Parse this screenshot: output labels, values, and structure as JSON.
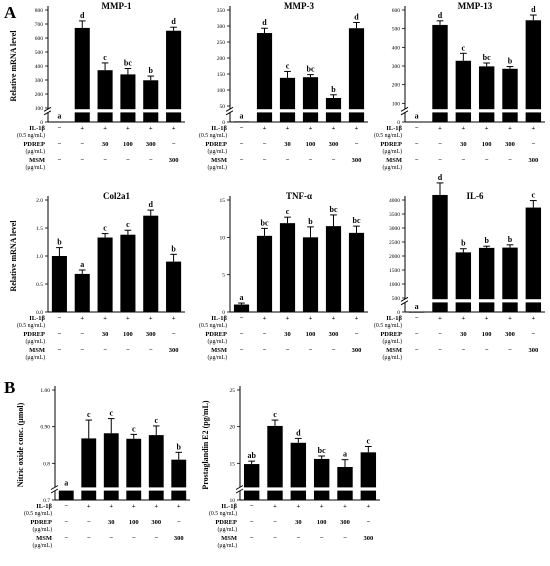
{
  "figure": {
    "panel_labels": [
      "A",
      "B"
    ],
    "ylabel_a": "Relative mRNA level"
  },
  "chart_data": [
    {
      "id": "mmp1",
      "type": "bar",
      "title": "MMP-1",
      "ylabel": "Relative mRNA level",
      "yticks": [
        0,
        100,
        200,
        300,
        400,
        500,
        600,
        700,
        800
      ],
      "ylim": [
        0,
        800
      ],
      "axis_break": true,
      "values": [
        2,
        672,
        370,
        340,
        298,
        652
      ],
      "errors": [
        0,
        50,
        52,
        42,
        30,
        25
      ],
      "letters": [
        "a",
        "d",
        "c",
        "bc",
        "b",
        "d"
      ],
      "treat": {
        "il1b": [
          "IL-1β",
          "(0.5 ng/mL)"
        ],
        "pdrep": [
          "PDREP",
          "(μg/mL)"
        ],
        "msm": [
          "MSM",
          "(μg/mL)"
        ]
      },
      "rows": {
        "il1b": [
          "−",
          "+",
          "+",
          "+",
          "+",
          "+"
        ],
        "pdrep": [
          "−",
          "−",
          "30",
          "100",
          "300",
          "−"
        ],
        "msm": [
          "−",
          "−",
          "−",
          "−",
          "−",
          "300"
        ]
      }
    },
    {
      "id": "mmp3",
      "type": "bar",
      "title": "MMP-3",
      "yticks": [
        0,
        50,
        100,
        150,
        200,
        250,
        300,
        350
      ],
      "ylim": [
        0,
        350
      ],
      "axis_break": true,
      "values": [
        2,
        278,
        138,
        140,
        75,
        293
      ],
      "errors": [
        0,
        15,
        20,
        8,
        10,
        18
      ],
      "letters": [
        "a",
        "d",
        "c",
        "bc",
        "b",
        "d"
      ],
      "treat": {
        "il1b": [
          "IL-1β",
          "(0.5 ng/mL)"
        ],
        "pdrep": [
          "PDREP",
          "(μg/mL)"
        ],
        "msm": [
          "MSM",
          "(μg/mL)"
        ]
      },
      "rows": {
        "il1b": [
          "−",
          "+",
          "+",
          "+",
          "+",
          "+"
        ],
        "pdrep": [
          "−",
          "−",
          "30",
          "100",
          "300",
          "−"
        ],
        "msm": [
          "−",
          "−",
          "−",
          "−",
          "−",
          "300"
        ]
      }
    },
    {
      "id": "mmp13",
      "type": "bar",
      "title": "MMP-13",
      "yticks": [
        0,
        100,
        200,
        300,
        400,
        500,
        600
      ],
      "ylim": [
        0,
        600
      ],
      "axis_break": true,
      "values": [
        2,
        520,
        328,
        298,
        285,
        545
      ],
      "errors": [
        0,
        22,
        40,
        18,
        12,
        28
      ],
      "letters": [
        "a",
        "d",
        "c",
        "bc",
        "b",
        "d"
      ],
      "treat": {
        "il1b": [
          "IL-1β",
          "(0.5 ng/mL)"
        ],
        "pdrep": [
          "PDREP",
          "(μg/mL)"
        ],
        "msm": [
          "MSM",
          "(μg/mL)"
        ]
      },
      "rows": {
        "il1b": [
          "−",
          "+",
          "+",
          "+",
          "+",
          "+"
        ],
        "pdrep": [
          "−",
          "−",
          "30",
          "100",
          "300",
          "−"
        ],
        "msm": [
          "−",
          "−",
          "−",
          "−",
          "−",
          "300"
        ]
      }
    },
    {
      "id": "col2a1",
      "type": "bar",
      "title": "Col2a1",
      "ylabel": "Relative mRNA level",
      "yticks": [
        0.0,
        0.5,
        1.0,
        1.5,
        2.0
      ],
      "ytick_labels": [
        "0.0",
        "0.5",
        "1.0",
        "1.5",
        "2.0"
      ],
      "ylim": [
        0,
        2
      ],
      "axis_break": false,
      "values": [
        1.0,
        0.68,
        1.33,
        1.38,
        1.72,
        0.9
      ],
      "errors": [
        0.15,
        0.07,
        0.07,
        0.08,
        0.1,
        0.13
      ],
      "letters": [
        "b",
        "a",
        "c",
        "c",
        "d",
        "b"
      ],
      "treat": {
        "il1b": [
          "IL-1β",
          "(0.5 ng/mL)"
        ],
        "pdrep": [
          "PDREP",
          "(μg/mL)"
        ],
        "msm": [
          "MSM",
          "(μg/mL)"
        ]
      },
      "rows": {
        "il1b": [
          "−",
          "+",
          "+",
          "+",
          "+",
          "+"
        ],
        "pdrep": [
          "−",
          "−",
          "30",
          "100",
          "300",
          "−"
        ],
        "msm": [
          "−",
          "−",
          "−",
          "−",
          "−",
          "300"
        ]
      }
    },
    {
      "id": "tnfa",
      "type": "bar",
      "title": "TNF-α",
      "yticks": [
        0,
        5,
        10,
        15
      ],
      "ylim": [
        0,
        15
      ],
      "axis_break": false,
      "values": [
        1.0,
        10.2,
        11.9,
        10.0,
        11.5,
        10.6
      ],
      "errors": [
        0.2,
        1.0,
        0.8,
        1.4,
        1.5,
        0.9
      ],
      "letters": [
        "a",
        "bc",
        "c",
        "b",
        "bc",
        "bc"
      ],
      "treat": {
        "il1b": [
          "IL-1β",
          "(0.5 ng/mL)"
        ],
        "pdrep": [
          "PDREP",
          "(μg/mL)"
        ],
        "msm": [
          "MSM",
          "(μg/mL)"
        ]
      },
      "rows": {
        "il1b": [
          "−",
          "+",
          "+",
          "+",
          "+",
          "+"
        ],
        "pdrep": [
          "−",
          "−",
          "30",
          "100",
          "300",
          "−"
        ],
        "msm": [
          "−",
          "−",
          "−",
          "−",
          "−",
          "300"
        ]
      }
    },
    {
      "id": "il6",
      "type": "bar",
      "title": "IL-6",
      "yticks": [
        0,
        500,
        1000,
        1500,
        2000,
        2500,
        3000,
        3500,
        4000
      ],
      "ylim": [
        0,
        4000
      ],
      "axis_break": true,
      "values": [
        5,
        4180,
        2130,
        2290,
        2300,
        3730
      ],
      "errors": [
        0,
        430,
        130,
        60,
        100,
        250
      ],
      "letters": [
        "a",
        "d",
        "b",
        "b",
        "b",
        "c"
      ],
      "treat": {
        "il1b": [
          "IL-1β",
          "(0.5 ng/mL)"
        ],
        "pdrep": [
          "PDREP",
          "(μg/mL)"
        ],
        "msm": [
          "MSM",
          "(μg/mL)"
        ]
      },
      "rows": {
        "il1b": [
          "−",
          "+",
          "+",
          "+",
          "+",
          "+"
        ],
        "pdrep": [
          "−",
          "−",
          "30",
          "100",
          "300",
          "−"
        ],
        "msm": [
          "−",
          "−",
          "−",
          "−",
          "−",
          "300"
        ]
      }
    },
    {
      "id": "no",
      "type": "bar",
      "title": "",
      "ylabel": "Nitric oxide conc. (μmol)",
      "yticks": [
        0.7,
        0.8,
        0.9,
        1.0
      ],
      "ytick_labels": [
        "0.7",
        "0.8",
        "0.90",
        "1.00"
      ],
      "ylim": [
        0.7,
        1.0
      ],
      "axis_break": true,
      "values": [
        0.727,
        0.868,
        0.882,
        0.867,
        0.877,
        0.81
      ],
      "errors": [
        0.005,
        0.05,
        0.04,
        0.012,
        0.025,
        0.02
      ],
      "letters": [
        "a",
        "c",
        "c",
        "c",
        "c",
        "b"
      ],
      "treat": {
        "il1b": [
          "IL-1β",
          "(0.5 ng/mL)"
        ],
        "pdrep": [
          "PDREP",
          "(μg/mL)"
        ],
        "msm": [
          "MSM",
          "(μg/mL)"
        ]
      },
      "rows": {
        "il1b": [
          "−",
          "+",
          "+",
          "+",
          "+",
          "+"
        ],
        "pdrep": [
          "−",
          "−",
          "30",
          "100",
          "300",
          "−"
        ],
        "msm": [
          "−",
          "−",
          "−",
          "−",
          "−",
          "300"
        ]
      }
    },
    {
      "id": "pge2",
      "type": "bar",
      "title": "",
      "ylabel": "Prostaglandin E2 (pg/mL)",
      "yticks": [
        10,
        15,
        20,
        25
      ],
      "ylim": [
        10,
        25
      ],
      "axis_break": true,
      "values": [
        14.9,
        20.1,
        17.8,
        15.6,
        14.5,
        16.5
      ],
      "errors": [
        0.4,
        0.8,
        0.6,
        0.4,
        1.0,
        0.8
      ],
      "letters": [
        "ab",
        "c",
        "d",
        "bc",
        "a",
        "c"
      ],
      "treat": {
        "il1b": [
          "IL-1β",
          "(0.5 ng/mL)"
        ],
        "pdrep": [
          "PDREP",
          "(μg/mL)"
        ],
        "msm": [
          "MSM",
          "(μg/mL)"
        ]
      },
      "rows": {
        "il1b": [
          "−",
          "+",
          "+",
          "+",
          "+",
          "+"
        ],
        "pdrep": [
          "−",
          "−",
          "30",
          "100",
          "300",
          "−"
        ],
        "msm": [
          "−",
          "−",
          "−",
          "−",
          "−",
          "300"
        ]
      }
    }
  ]
}
